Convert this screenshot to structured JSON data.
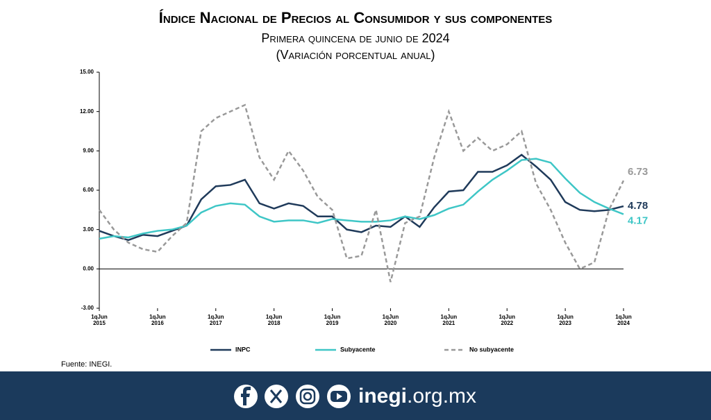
{
  "chart_data": {
    "type": "line",
    "title": "Índice Nacional de Precios al Consumidor y sus componentes",
    "subtitle": "Primera quincena de junio de 2024",
    "subtitle2": "(Variación porcentual anual)",
    "x": [
      0,
      3,
      6,
      9,
      12,
      15,
      18,
      21,
      24,
      27,
      30,
      33,
      36,
      39,
      42,
      45,
      48,
      51,
      54,
      57,
      60,
      63,
      66,
      69,
      72,
      75,
      78,
      81,
      84,
      87,
      90,
      93,
      96,
      99,
      102,
      105,
      108
    ],
    "series": [
      {
        "name": "INPC",
        "color": "#1f3a5a",
        "dash": false,
        "values": [
          2.9,
          2.5,
          2.2,
          2.6,
          2.5,
          2.9,
          3.3,
          5.3,
          6.3,
          6.4,
          6.8,
          5.0,
          4.6,
          5.0,
          4.8,
          4.0,
          4.0,
          3.0,
          2.8,
          3.3,
          3.2,
          4.0,
          3.2,
          4.7,
          5.9,
          6.0,
          7.4,
          7.4,
          7.9,
          8.7,
          7.8,
          6.8,
          5.1,
          4.5,
          4.4,
          4.5,
          4.78
        ]
      },
      {
        "name": "Subyacente",
        "color": "#3ec6c6",
        "dash": false,
        "values": [
          2.3,
          2.5,
          2.4,
          2.7,
          2.9,
          3.0,
          3.3,
          4.3,
          4.8,
          5.0,
          4.9,
          4.0,
          3.6,
          3.7,
          3.7,
          3.5,
          3.8,
          3.7,
          3.6,
          3.6,
          3.7,
          4.0,
          3.8,
          4.1,
          4.6,
          4.9,
          5.9,
          6.8,
          7.5,
          8.3,
          8.4,
          8.1,
          6.9,
          5.8,
          5.1,
          4.6,
          4.17
        ]
      },
      {
        "name": "No subyacente",
        "color": "#999999",
        "dash": true,
        "values": [
          4.5,
          3.0,
          2.0,
          1.5,
          1.3,
          2.5,
          3.5,
          10.5,
          11.5,
          12.0,
          12.5,
          8.5,
          6.8,
          9.0,
          7.5,
          5.5,
          4.5,
          0.8,
          1.0,
          4.5,
          -1.0,
          3.5,
          4.0,
          8.5,
          12.0,
          9.0,
          10.0,
          9.0,
          9.5,
          10.5,
          6.5,
          4.5,
          2.0,
          0.0,
          0.5,
          4.5,
          6.73
        ]
      }
    ],
    "xlim": [
      0,
      108
    ],
    "xticks": [
      {
        "value": 0,
        "label": "1qJun 2015"
      },
      {
        "value": 12,
        "label": "1qJun 2016"
      },
      {
        "value": 24,
        "label": "1qJun 2017"
      },
      {
        "value": 36,
        "label": "1qJun 2018"
      },
      {
        "value": 48,
        "label": "1qJun 2019"
      },
      {
        "value": 60,
        "label": "1qJun 2020"
      },
      {
        "value": 72,
        "label": "1qJun 2021"
      },
      {
        "value": 84,
        "label": "1qJun 2022"
      },
      {
        "value": 96,
        "label": "1qJun 2023"
      },
      {
        "value": 108,
        "label": "1qJun 2024"
      }
    ],
    "ylim": [
      -3,
      15
    ],
    "yticks": [
      {
        "value": -3,
        "label": "-3.00"
      },
      {
        "value": 0,
        "label": "0.00"
      },
      {
        "value": 3,
        "label": "3.00"
      },
      {
        "value": 6,
        "label": "6.00"
      },
      {
        "value": 9,
        "label": "9.00"
      },
      {
        "value": 12,
        "label": "12.00"
      },
      {
        "value": 15,
        "label": "15.00"
      }
    ],
    "source": "Fuente: INEGI."
  },
  "footer": {
    "site": "inegi",
    "domain": ".org.mx"
  }
}
